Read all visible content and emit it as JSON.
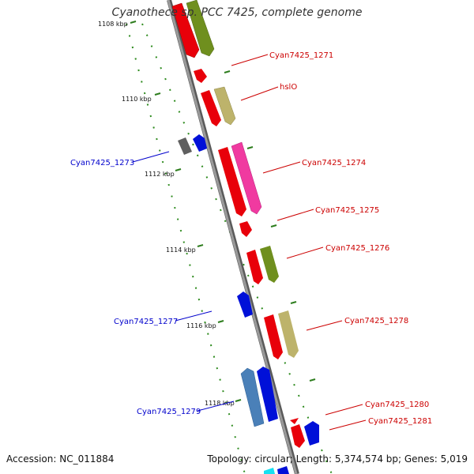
{
  "title": "Cyanothece sp. PCC 7425, complete genome",
  "footer": {
    "accession": "Accession: NC_011884",
    "summary": "Topology: circular; Length: 5,374,574 bp; Genes: 5,019"
  },
  "ticks": [
    "1108 kbp",
    "1110 kbp",
    "1112 kbp",
    "1114 kbp",
    "1116 kbp",
    "1118 kbp"
  ],
  "labels": {
    "right": [
      "Cyan7425_1271",
      "hslO",
      "Cyan7425_1274",
      "Cyan7425_1275",
      "Cyan7425_1276",
      "Cyan7425_1278",
      "Cyan7425_1280",
      "Cyan7425_1281"
    ],
    "left": [
      "Cyan7425_1273",
      "Cyan7425_1277",
      "Cyan7425_1279"
    ]
  },
  "colors": {
    "forward_label": "#cc0000",
    "reverse_label": "#0000cc",
    "backbone": "#8a8a8a",
    "tick": "#2e7d1e",
    "dots": "#2e8b1e"
  }
}
